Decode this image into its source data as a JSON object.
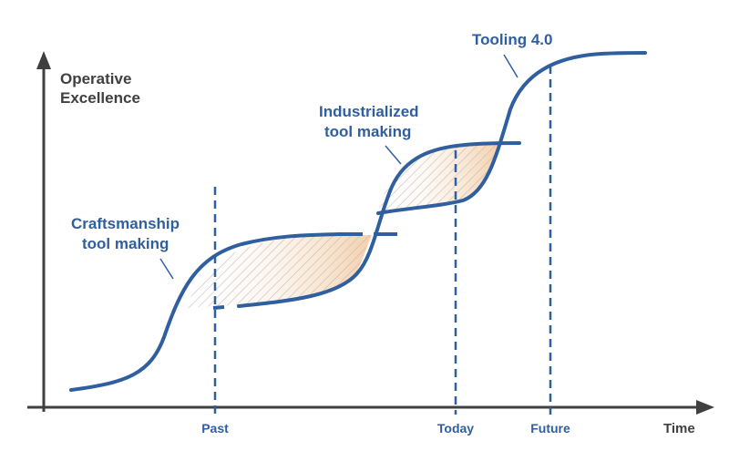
{
  "axes": {
    "y_title_line1": "Operative",
    "y_title_line2": "Excellence",
    "x_title": "Time"
  },
  "milestones": {
    "past": "Past",
    "today": "Today",
    "future": "Future"
  },
  "curves": {
    "craftsmanship_line1": "Craftsmanship",
    "craftsmanship_line2": "tool making",
    "industrialized_line1": "Industrialized",
    "industrialized_line2": "tool making",
    "tooling40": "Tooling 4.0"
  },
  "colors": {
    "curve": "#2f5f9e",
    "axis": "#404040",
    "hatch_gray": "#c9c9c9",
    "hatch_orange": "#f0b27a"
  }
}
